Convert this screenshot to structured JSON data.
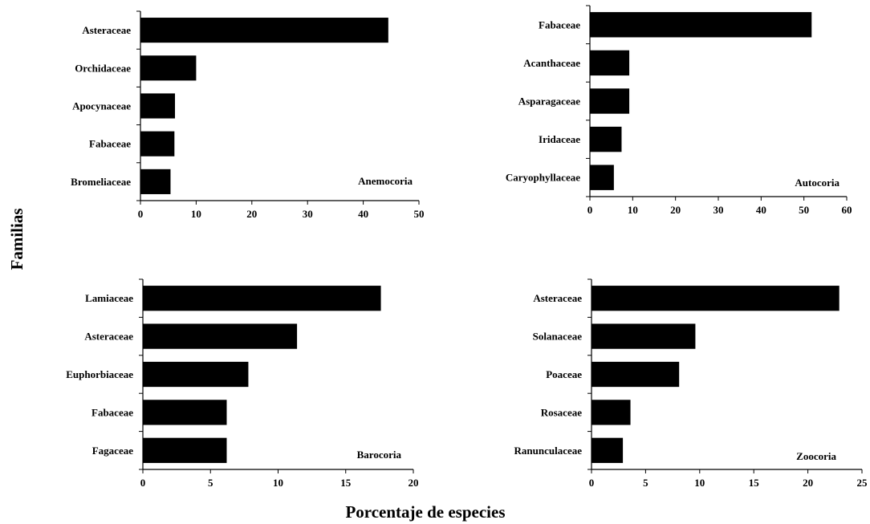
{
  "figure": {
    "xlabel": "Porcentaje de especies",
    "ylabel": "Familias"
  },
  "chart_data": [
    {
      "type": "bar",
      "orientation": "horizontal",
      "panel_label": "Anemocoria",
      "categories": [
        "Asteraceae",
        "Orchidaceae",
        "Apocynaceae",
        "Fabaceae",
        "Bromeliaceae"
      ],
      "values": [
        44.5,
        10,
        6.2,
        6.1,
        5.4
      ],
      "xlim": [
        0,
        50
      ],
      "xticks": [
        0,
        10,
        20,
        30,
        40,
        50
      ],
      "bar_color": "#000000"
    },
    {
      "type": "bar",
      "orientation": "horizontal",
      "panel_label": "Autocoria",
      "categories": [
        "Fabaceae",
        "Acanthaceae",
        "Asparagaceae",
        "Iridaceae",
        "Caryophyllaceae"
      ],
      "values": [
        51.8,
        9.2,
        9.2,
        7.4,
        5.6
      ],
      "xlim": [
        0,
        60
      ],
      "xticks": [
        0,
        10,
        20,
        30,
        40,
        50,
        60
      ],
      "bar_color": "#000000"
    },
    {
      "type": "bar",
      "orientation": "horizontal",
      "panel_label": "Barocoria",
      "categories": [
        "Lamiaceae",
        "Asteraceae",
        "Euphorbiaceae",
        "Fabaceae",
        "Fagaceae"
      ],
      "values": [
        17.6,
        11.4,
        7.8,
        6.2,
        6.2
      ],
      "xlim": [
        0,
        20
      ],
      "xticks": [
        0,
        5,
        10,
        15,
        20
      ],
      "bar_color": "#000000"
    },
    {
      "type": "bar",
      "orientation": "horizontal",
      "panel_label": "Zoocoria",
      "categories": [
        "Asteraceae",
        "Solanaceae",
        "Poaceae",
        "Rosaceae",
        "Ranunculaceae"
      ],
      "values": [
        22.9,
        9.6,
        8.1,
        3.6,
        2.9
      ],
      "xlim": [
        0,
        25
      ],
      "xticks": [
        0,
        5,
        10,
        15,
        20,
        25
      ],
      "bar_color": "#000000"
    }
  ]
}
